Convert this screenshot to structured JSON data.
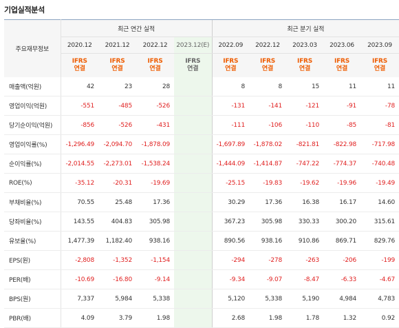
{
  "section_title": "기업실적분석",
  "row_header": "주요재무정보",
  "groups": {
    "annual": "최근 연간 실적",
    "quarterly": "최근 분기 실적"
  },
  "standard": {
    "line1": "IFRS",
    "line2": "연결"
  },
  "periods": [
    {
      "label": "2020.12"
    },
    {
      "label": "2021.12"
    },
    {
      "label": "2022.12"
    },
    {
      "label": "2023.12(E)",
      "estimate": true
    },
    {
      "label": "2022.09"
    },
    {
      "label": "2022.12"
    },
    {
      "label": "2023.03"
    },
    {
      "label": "2023.06"
    },
    {
      "label": "2023.09"
    }
  ],
  "rows": [
    {
      "label": "매출액(억원)",
      "values": [
        "42",
        "23",
        "28",
        "",
        "8",
        "8",
        "15",
        "11",
        "11"
      ]
    },
    {
      "label": "영업이익(억원)",
      "values": [
        "-551",
        "-485",
        "-526",
        "",
        "-131",
        "-141",
        "-121",
        "-91",
        "-78"
      ]
    },
    {
      "label": "당기순이익(억원)",
      "values": [
        "-856",
        "-526",
        "-431",
        "",
        "-111",
        "-106",
        "-110",
        "-85",
        "-81"
      ]
    },
    {
      "label": "영업이익률(%)",
      "values": [
        "-1,296.49",
        "-2,094.70",
        "-1,878.09",
        "",
        "-1,697.89",
        "-1,878.02",
        "-821.81",
        "-822.98",
        "-717.98"
      ]
    },
    {
      "label": "순이익률(%)",
      "values": [
        "-2,014.55",
        "-2,273.01",
        "-1,538.24",
        "",
        "-1,444.09",
        "-1,414.87",
        "-747.22",
        "-774.37",
        "-740.48"
      ]
    },
    {
      "label": "ROE(%)",
      "values": [
        "-35.12",
        "-20.31",
        "-19.69",
        "",
        "-25.15",
        "-19.83",
        "-19.62",
        "-19.96",
        "-19.49"
      ]
    },
    {
      "label": "부채비율(%)",
      "values": [
        "70.55",
        "25.48",
        "17.36",
        "",
        "30.29",
        "17.36",
        "16.38",
        "16.17",
        "14.60"
      ]
    },
    {
      "label": "당좌비율(%)",
      "values": [
        "143.55",
        "404.83",
        "305.98",
        "",
        "367.23",
        "305.98",
        "330.33",
        "300.20",
        "315.61"
      ]
    },
    {
      "label": "유보율(%)",
      "values": [
        "1,477.39",
        "1,182.40",
        "938.16",
        "",
        "890.56",
        "938.16",
        "910.86",
        "869.71",
        "829.76"
      ]
    },
    {
      "label": "EPS(원)",
      "values": [
        "-2,808",
        "-1,352",
        "-1,154",
        "",
        "-294",
        "-278",
        "-263",
        "-206",
        "-199"
      ]
    },
    {
      "label": "PER(배)",
      "values": [
        "-10.69",
        "-16.80",
        "-9.14",
        "",
        "-9.34",
        "-9.07",
        "-8.47",
        "-6.33",
        "-4.67"
      ]
    },
    {
      "label": "BPS(원)",
      "values": [
        "7,337",
        "5,984",
        "5,338",
        "",
        "5,120",
        "5,338",
        "5,190",
        "4,984",
        "4,783"
      ]
    },
    {
      "label": "PBR(배)",
      "values": [
        "4.09",
        "3.79",
        "1.98",
        "",
        "2.68",
        "1.98",
        "1.78",
        "1.32",
        "0.92"
      ]
    }
  ],
  "colors": {
    "negative": "#e02020",
    "ifrs": "#ee5c00",
    "estimate_bg": "#edf7ec"
  }
}
